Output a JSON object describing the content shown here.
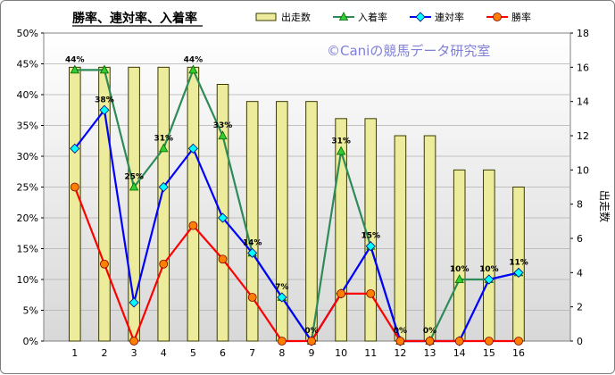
{
  "title": "勝率、連対率、入着率",
  "watermark": "©Caniの競馬データ研究室",
  "right_axis_title": "出走数",
  "colors": {
    "bars_fill": "#ecec9c",
    "bars_stroke": "#3a3a00",
    "entry_rate": "#2e8b57",
    "top2_rate": "#0000ff",
    "win_rate": "#ff0000",
    "marker_win": "#ff8000",
    "marker_top2": "#00ffff",
    "marker_entry": "#33cc33",
    "plot_bg_top": "#ffffff",
    "plot_bg_bottom": "#d8d8d8"
  },
  "chart_data": {
    "type": "bar",
    "categories": [
      "1",
      "2",
      "3",
      "4",
      "5",
      "6",
      "7",
      "8",
      "9",
      "10",
      "11",
      "12",
      "13",
      "14",
      "15",
      "16"
    ],
    "x_tick_labels": [
      "1",
      "2",
      "3",
      "4",
      "5",
      "6",
      "7",
      "8",
      "9",
      "10",
      "11",
      "12",
      "13",
      "14",
      "15",
      "16"
    ],
    "y_left_ticks": [
      "0%",
      "5%",
      "10%",
      "15%",
      "20%",
      "25%",
      "30%",
      "35%",
      "40%",
      "45%",
      "50%"
    ],
    "y_right_ticks": [
      "0",
      "2",
      "4",
      "6",
      "8",
      "10",
      "12",
      "14",
      "16",
      "18"
    ],
    "ylim_left": [
      0,
      50
    ],
    "ylim_right": [
      0,
      18
    ],
    "grid": "horizontal",
    "legend_position": "top",
    "series": [
      {
        "name": "出走数",
        "kind": "bar",
        "axis": "right",
        "marker": "none",
        "values": [
          16,
          16,
          16,
          16,
          16,
          15,
          14,
          14,
          14,
          13,
          13,
          12,
          12,
          10,
          10,
          9
        ]
      },
      {
        "name": "入着率",
        "kind": "line",
        "axis": "left",
        "marker": "triangle",
        "values": [
          44,
          44,
          25,
          31.25,
          44,
          33.3,
          14.3,
          7.1,
          0,
          30.8,
          15.4,
          0,
          0,
          10,
          10,
          11.1
        ],
        "labels": [
          "44%",
          "",
          "25%",
          "31%",
          "44%",
          "33%",
          "14%",
          "7%",
          "0%",
          "31%",
          "15%",
          "0%",
          "0%",
          "10%",
          "10%",
          "11%"
        ]
      },
      {
        "name": "連対率",
        "kind": "line",
        "axis": "left",
        "marker": "diamond",
        "values": [
          31.25,
          37.5,
          6.25,
          25,
          31.25,
          20,
          14.3,
          7.1,
          0,
          7.7,
          15.4,
          0,
          0,
          0,
          10,
          11.1
        ],
        "labels": [
          "",
          "38%",
          "",
          "",
          "",
          "",
          "",
          "",
          "",
          "",
          "",
          "",
          "",
          "",
          "",
          ""
        ]
      },
      {
        "name": "勝率",
        "kind": "line",
        "axis": "left",
        "marker": "circle",
        "values": [
          25,
          12.5,
          0,
          12.5,
          18.75,
          13.3,
          7.1,
          0,
          0,
          7.7,
          7.7,
          0,
          0,
          0,
          0,
          0
        ],
        "labels": []
      }
    ]
  }
}
